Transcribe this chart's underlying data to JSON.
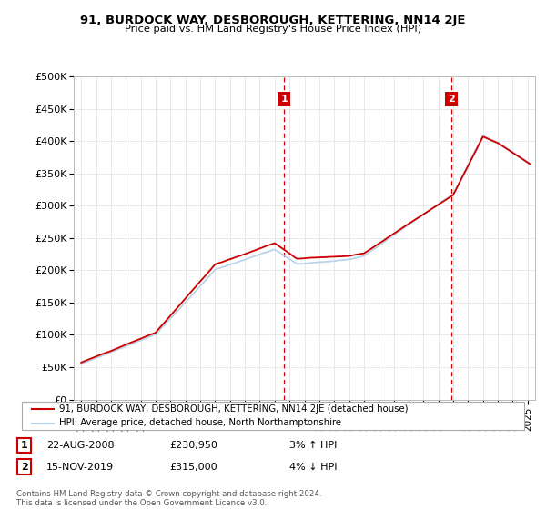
{
  "title": "91, BURDOCK WAY, DESBOROUGH, KETTERING, NN14 2JE",
  "subtitle": "Price paid vs. HM Land Registry's House Price Index (HPI)",
  "ylim": [
    0,
    500000
  ],
  "yticks": [
    0,
    50000,
    100000,
    150000,
    200000,
    250000,
    300000,
    350000,
    400000,
    450000,
    500000
  ],
  "xlim_start": 1994.5,
  "xlim_end": 2025.5,
  "sale1_year": 2008.64,
  "sale1_label": "1",
  "sale1_price": 230950,
  "sale2_year": 2019.88,
  "sale2_label": "2",
  "sale2_price": 315000,
  "hpi_color": "#bad4ea",
  "price_color": "#cc0000",
  "vline_color": "#cc0000",
  "legend_label_price": "91, BURDOCK WAY, DESBOROUGH, KETTERING, NN14 2JE (detached house)",
  "legend_label_hpi": "HPI: Average price, detached house, North Northamptonshire",
  "table_row1": [
    "1",
    "22-AUG-2008",
    "£230,950",
    "3% ↑ HPI"
  ],
  "table_row2": [
    "2",
    "15-NOV-2019",
    "£315,000",
    "4% ↓ HPI"
  ],
  "footnote": "Contains HM Land Registry data © Crown copyright and database right 2024.\nThis data is licensed under the Open Government Licence v3.0.",
  "grid_color": "#e0e0e0"
}
